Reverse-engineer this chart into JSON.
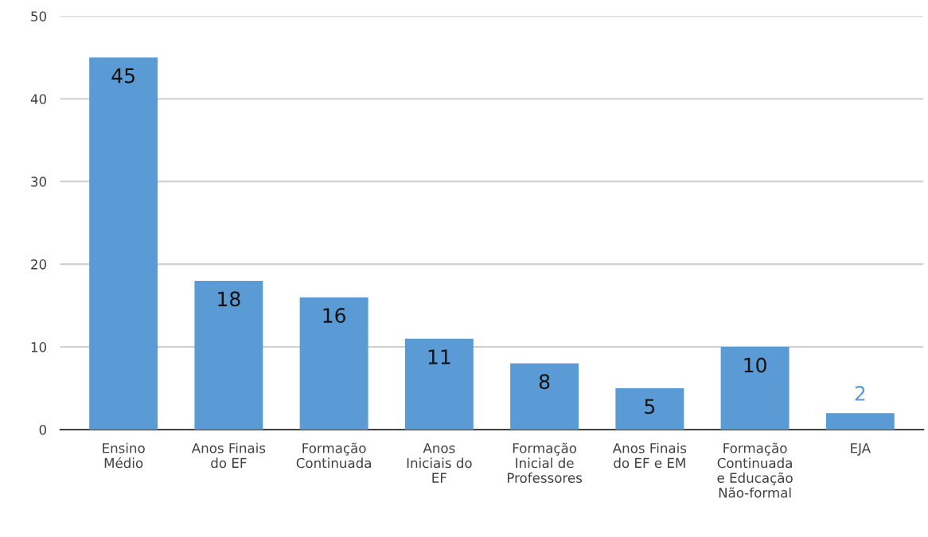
{
  "chart_data": {
    "type": "bar",
    "categories": [
      "Ensino\nMédio",
      "Anos Finais\ndo EF",
      "Formação\nContinuada",
      "Anos\nIniciais do\nEF",
      "Formação\nInicial de\nProfessores",
      "Anos Finais\ndo EF e EM",
      "Formação\nContinuada\ne Educação\nNão-formal",
      "EJA"
    ],
    "values": [
      45,
      18,
      16,
      11,
      8,
      5,
      10,
      2
    ],
    "color": "#5b9bd5",
    "ylim": [
      0,
      50
    ],
    "yticks": [
      0,
      10,
      20,
      30,
      40,
      50
    ],
    "grid": "y",
    "data_labels": true
  }
}
